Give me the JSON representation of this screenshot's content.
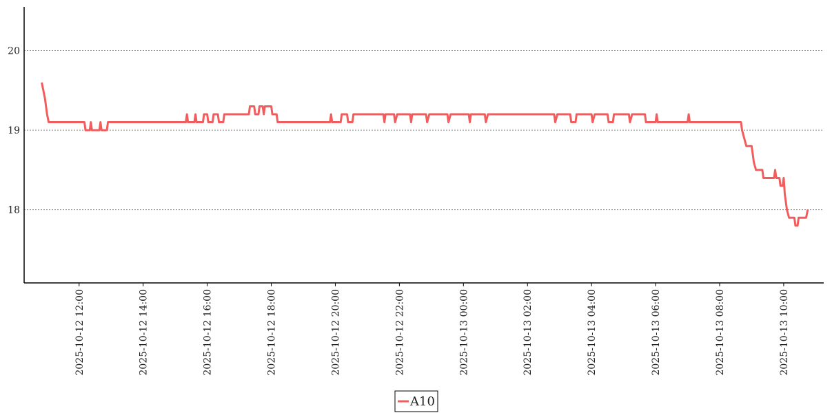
{
  "chart_data": {
    "type": "line",
    "x": [
      "2025-10-12 10:50",
      "2025-10-12 10:53",
      "2025-10-12 10:56",
      "2025-10-12 10:58",
      "2025-10-12 11:00",
      "2025-10-12 11:03",
      "2025-10-12 12:10",
      "2025-10-12 12:12",
      "2025-10-12 12:20",
      "2025-10-12 12:22",
      "2025-10-12 12:24",
      "2025-10-12 12:38",
      "2025-10-12 12:40",
      "2025-10-12 12:42",
      "2025-10-12 12:52",
      "2025-10-12 12:54",
      "2025-10-12 15:20",
      "2025-10-12 15:22",
      "2025-10-12 15:24",
      "2025-10-12 15:36",
      "2025-10-12 15:38",
      "2025-10-12 15:40",
      "2025-10-12 15:52",
      "2025-10-12 15:54",
      "2025-10-12 16:00",
      "2025-10-12 16:02",
      "2025-10-12 16:10",
      "2025-10-12 16:12",
      "2025-10-12 16:20",
      "2025-10-12 16:22",
      "2025-10-12 16:30",
      "2025-10-12 16:32",
      "2025-10-12 17:18",
      "2025-10-12 17:20",
      "2025-10-12 17:28",
      "2025-10-12 17:30",
      "2025-10-12 17:36",
      "2025-10-12 17:38",
      "2025-10-12 17:44",
      "2025-10-12 17:46",
      "2025-10-12 17:48",
      "2025-10-12 18:00",
      "2025-10-12 18:02",
      "2025-10-12 18:10",
      "2025-10-12 18:12",
      "2025-10-12 19:50",
      "2025-10-12 19:52",
      "2025-10-12 19:54",
      "2025-10-12 20:10",
      "2025-10-12 20:12",
      "2025-10-12 20:22",
      "2025-10-12 20:24",
      "2025-10-12 20:32",
      "2025-10-12 20:34",
      "2025-10-12 21:30",
      "2025-10-12 21:32",
      "2025-10-12 21:34",
      "2025-10-12 21:50",
      "2025-10-12 21:52",
      "2025-10-12 21:56",
      "2025-10-12 22:20",
      "2025-10-12 22:22",
      "2025-10-12 22:24",
      "2025-10-12 22:50",
      "2025-10-12 22:52",
      "2025-10-12 22:56",
      "2025-10-12 23:30",
      "2025-10-12 23:32",
      "2025-10-12 23:36",
      "2025-10-13 00:10",
      "2025-10-13 00:12",
      "2025-10-13 00:14",
      "2025-10-13 00:40",
      "2025-10-13 00:42",
      "2025-10-13 00:46",
      "2025-10-13 02:50",
      "2025-10-13 02:52",
      "2025-10-13 02:56",
      "2025-10-13 03:20",
      "2025-10-13 03:22",
      "2025-10-13 03:30",
      "2025-10-13 03:32",
      "2025-10-13 04:00",
      "2025-10-13 04:02",
      "2025-10-13 04:06",
      "2025-10-13 04:30",
      "2025-10-13 04:32",
      "2025-10-13 04:40",
      "2025-10-13 04:42",
      "2025-10-13 05:10",
      "2025-10-13 05:12",
      "2025-10-13 05:16",
      "2025-10-13 05:40",
      "2025-10-13 05:42",
      "2025-10-13 06:00",
      "2025-10-13 06:02",
      "2025-10-13 06:04",
      "2025-10-13 07:00",
      "2025-10-13 07:02",
      "2025-10-13 07:04",
      "2025-10-13 08:40",
      "2025-10-13 08:42",
      "2025-10-13 08:46",
      "2025-10-13 08:50",
      "2025-10-13 09:00",
      "2025-10-13 09:04",
      "2025-10-13 09:08",
      "2025-10-13 09:20",
      "2025-10-13 09:22",
      "2025-10-13 09:42",
      "2025-10-13 09:44",
      "2025-10-13 09:46",
      "2025-10-13 09:52",
      "2025-10-13 09:54",
      "2025-10-13 09:58",
      "2025-10-13 10:00",
      "2025-10-13 10:02",
      "2025-10-13 10:06",
      "2025-10-13 10:10",
      "2025-10-13 10:20",
      "2025-10-13 10:22",
      "2025-10-13 10:26",
      "2025-10-13 10:28",
      "2025-10-13 10:42",
      "2025-10-13 10:45"
    ],
    "series": [
      {
        "name": "A10",
        "color": "#f25c5c",
        "values": [
          19.6,
          19.5,
          19.4,
          19.3,
          19.2,
          19.1,
          19.1,
          19.0,
          19.0,
          19.1,
          19.0,
          19.0,
          19.1,
          19.0,
          19.0,
          19.1,
          19.1,
          19.2,
          19.1,
          19.1,
          19.2,
          19.1,
          19.1,
          19.2,
          19.2,
          19.1,
          19.1,
          19.2,
          19.2,
          19.1,
          19.1,
          19.2,
          19.2,
          19.3,
          19.3,
          19.2,
          19.2,
          19.3,
          19.3,
          19.2,
          19.3,
          19.3,
          19.2,
          19.2,
          19.1,
          19.1,
          19.2,
          19.1,
          19.1,
          19.2,
          19.2,
          19.1,
          19.1,
          19.2,
          19.2,
          19.1,
          19.2,
          19.2,
          19.1,
          19.2,
          19.2,
          19.1,
          19.2,
          19.2,
          19.1,
          19.2,
          19.2,
          19.1,
          19.2,
          19.2,
          19.1,
          19.2,
          19.2,
          19.1,
          19.2,
          19.2,
          19.1,
          19.2,
          19.2,
          19.1,
          19.1,
          19.2,
          19.2,
          19.1,
          19.2,
          19.2,
          19.1,
          19.1,
          19.2,
          19.2,
          19.1,
          19.2,
          19.2,
          19.1,
          19.1,
          19.2,
          19.1,
          19.1,
          19.2,
          19.1,
          19.1,
          19.0,
          18.9,
          18.8,
          18.8,
          18.6,
          18.5,
          18.5,
          18.4,
          18.4,
          18.5,
          18.4,
          18.4,
          18.3,
          18.3,
          18.4,
          18.2,
          18.0,
          17.9,
          17.9,
          17.8,
          17.8,
          17.9,
          17.9,
          18.0
        ]
      }
    ],
    "xlim": [
      "2025-10-12 10:17",
      "2025-10-13 11:15"
    ],
    "xticks": [
      "2025-10-12 12:00",
      "2025-10-12 14:00",
      "2025-10-12 16:00",
      "2025-10-12 18:00",
      "2025-10-12 20:00",
      "2025-10-12 22:00",
      "2025-10-13 00:00",
      "2025-10-13 02:00",
      "2025-10-13 04:00",
      "2025-10-13 06:00",
      "2025-10-13 08:00",
      "2025-10-13 10:00"
    ],
    "ylim": [
      17.08,
      20.55
    ],
    "yticks": [
      18,
      19,
      20
    ],
    "grid": true,
    "legend": "bottom"
  }
}
